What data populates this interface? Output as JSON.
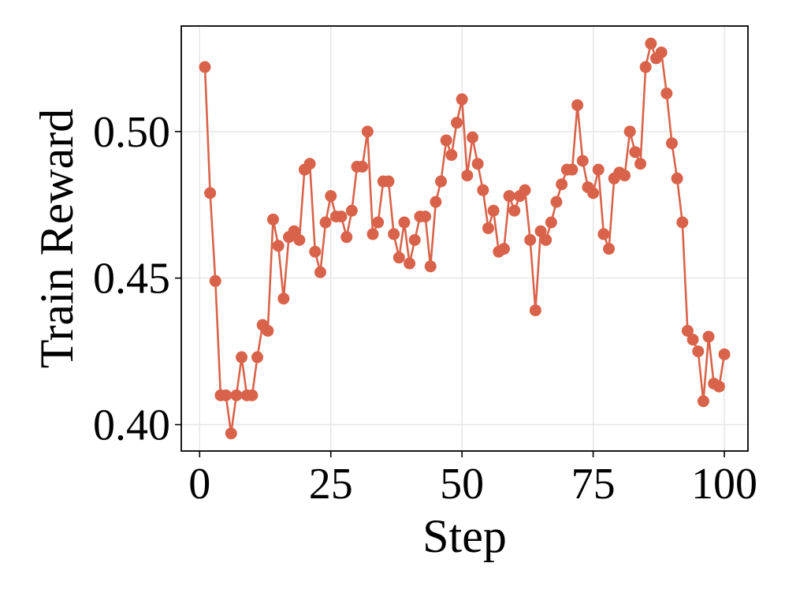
{
  "chart_data": {
    "type": "line",
    "xlabel": "Step",
    "ylabel": "Train Reward",
    "xlim": [
      -3.5,
      104.5
    ],
    "ylim": [
      0.391,
      0.536
    ],
    "xticks": [
      0,
      25,
      50,
      75,
      100
    ],
    "xtick_labels": [
      "0",
      "25",
      "50",
      "75",
      "100"
    ],
    "yticks": [
      0.4,
      0.45,
      0.5
    ],
    "ytick_labels": [
      "0.40",
      "0.45",
      "0.50"
    ],
    "grid": true,
    "legend": false,
    "series": [
      {
        "color": "#d9634a",
        "marker": "circle",
        "x": [
          1,
          2,
          3,
          4,
          5,
          6,
          7,
          8,
          9,
          10,
          11,
          12,
          13,
          14,
          15,
          16,
          17,
          18,
          19,
          20,
          21,
          22,
          23,
          24,
          25,
          26,
          27,
          28,
          29,
          30,
          31,
          32,
          33,
          34,
          35,
          36,
          37,
          38,
          39,
          40,
          41,
          42,
          43,
          44,
          45,
          46,
          47,
          48,
          49,
          50,
          51,
          52,
          53,
          54,
          55,
          56,
          57,
          58,
          59,
          60,
          61,
          62,
          63,
          64,
          65,
          66,
          67,
          68,
          69,
          70,
          71,
          72,
          73,
          74,
          75,
          76,
          77,
          78,
          79,
          80,
          81,
          82,
          83,
          84,
          85,
          86,
          87,
          88,
          89,
          90,
          91,
          92,
          93,
          94,
          95,
          96,
          97,
          98,
          99,
          100
        ],
        "y": [
          0.522,
          0.479,
          0.449,
          0.41,
          0.41,
          0.397,
          0.41,
          0.423,
          0.41,
          0.41,
          0.423,
          0.434,
          0.432,
          0.47,
          0.461,
          0.443,
          0.464,
          0.466,
          0.463,
          0.487,
          0.489,
          0.459,
          0.452,
          0.469,
          0.478,
          0.471,
          0.471,
          0.464,
          0.473,
          0.488,
          0.488,
          0.5,
          0.465,
          0.469,
          0.483,
          0.483,
          0.465,
          0.457,
          0.469,
          0.455,
          0.463,
          0.471,
          0.471,
          0.454,
          0.476,
          0.483,
          0.497,
          0.492,
          0.503,
          0.511,
          0.485,
          0.498,
          0.489,
          0.48,
          0.467,
          0.473,
          0.459,
          0.46,
          0.478,
          0.473,
          0.478,
          0.48,
          0.463,
          0.439,
          0.466,
          0.463,
          0.469,
          0.476,
          0.482,
          0.487,
          0.487,
          0.509,
          0.49,
          0.481,
          0.479,
          0.487,
          0.465,
          0.46,
          0.484,
          0.486,
          0.485,
          0.5,
          0.493,
          0.489,
          0.522,
          0.53,
          0.525,
          0.527,
          0.513,
          0.496,
          0.484,
          0.469,
          0.432,
          0.429,
          0.425,
          0.408,
          0.43,
          0.414,
          0.413,
          0.424
        ]
      }
    ]
  }
}
